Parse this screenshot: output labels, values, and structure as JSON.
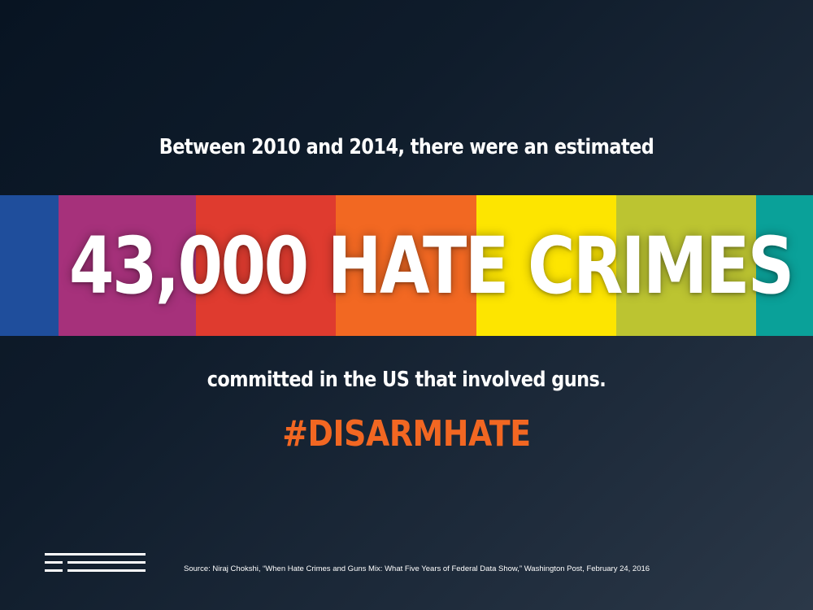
{
  "intro_text": "Between 2010 and 2014, there were an estimated",
  "headline": "43,000 HATE CRIMES",
  "followup_text": "committed in the US that involved guns.",
  "hashtag": "#DISARMHATE",
  "source": "Source: Niraj Chokshi, “When Hate Crimes and Guns Mix: What Five Years of Federal Data Show,” Washington Post, February 24, 2016",
  "colors": {
    "hashtag": "#f26722",
    "stripes": [
      "#1f4e9c",
      "#a6317b",
      "#df3b2f",
      "#f26822",
      "#fde500",
      "#bcc431",
      "#0aa199"
    ]
  },
  "logo_icon": "three-horizontal-lines-logo"
}
